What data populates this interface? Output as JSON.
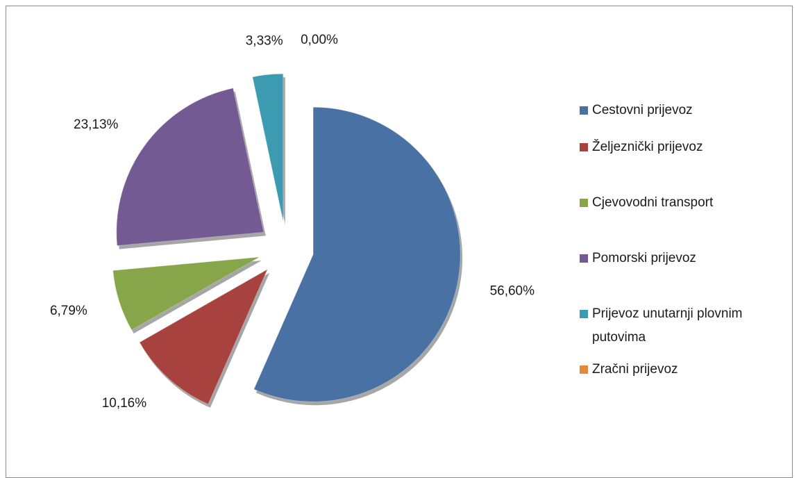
{
  "chart_data": {
    "type": "pie",
    "categories": [
      "Cestovni prijevoz",
      "Željeznički prijevoz",
      "Cjevovodni transport",
      "Pomorski prijevoz",
      "Prijevoz unutarnji plovnim putovima",
      "Zračni prijevoz"
    ],
    "values": [
      56.6,
      10.16,
      6.79,
      23.13,
      3.33,
      0.0
    ],
    "value_labels": [
      "56,60%",
      "10,16%",
      "6,79%",
      "23,13%",
      "3,33%",
      "0,00%"
    ],
    "colors": [
      "#4a71a4",
      "#a8423f",
      "#87a64a",
      "#735a92",
      "#3d9bb1",
      "#e5883a"
    ],
    "legend": "right"
  }
}
